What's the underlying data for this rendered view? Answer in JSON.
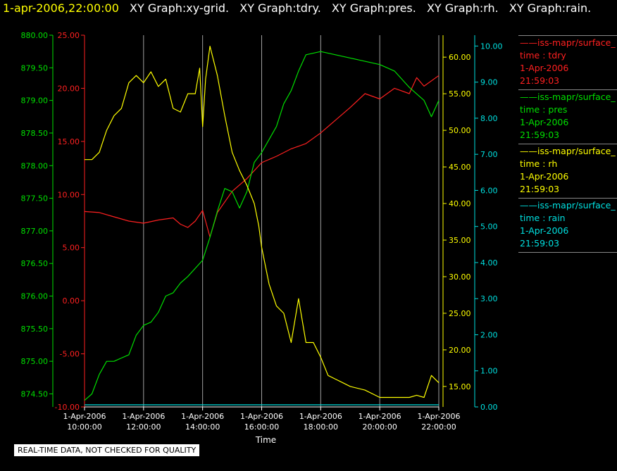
{
  "header": {
    "timestamp": "1-apr-2006,22:00:00",
    "titles": [
      "XY Graph:xy-grid.",
      "XY Graph:tdry.",
      "XY Graph:pres.",
      "XY Graph:rh.",
      "XY Graph:rain."
    ]
  },
  "legend": [
    {
      "source": "iss-mapr/surface_",
      "field": "time : tdry",
      "date": "1-Apr-2006",
      "time": "21:59:03",
      "color": "#ff2020"
    },
    {
      "source": "iss-mapr/surface_",
      "field": "time : pres",
      "date": "1-Apr-2006",
      "time": "21:59:03",
      "color": "#00e000"
    },
    {
      "source": "iss-mapr/surface_",
      "field": "time : rh",
      "date": "1-Apr-2006",
      "time": "21:59:03",
      "color": "#ffff00"
    },
    {
      "source": "iss-mapr/surface_",
      "field": "time : rain",
      "date": "1-Apr-2006",
      "time": "21:59:03",
      "color": "#00e0e0"
    }
  ],
  "note": "REAL-TIME DATA, NOT CHECKED FOR QUALITY",
  "chart_data": {
    "type": "line",
    "xlabel": "Time",
    "x_ticks": [
      {
        "hour": 10,
        "date": "1-Apr-2006",
        "time": "10:00:00"
      },
      {
        "hour": 12,
        "date": "1-Apr-2006",
        "time": "12:00:00"
      },
      {
        "hour": 14,
        "date": "1-Apr-2006",
        "time": "14:00:00"
      },
      {
        "hour": 16,
        "date": "1-Apr-2006",
        "time": "16:00:00"
      },
      {
        "hour": 18,
        "date": "1-Apr-2006",
        "time": "18:00:00"
      },
      {
        "hour": 20,
        "date": "1-Apr-2006",
        "time": "20:00:00"
      },
      {
        "hour": 22,
        "date": "1-Apr-2006",
        "time": "22:00:00"
      }
    ],
    "xlim": [
      10,
      22
    ],
    "grid": "vertical",
    "axes": [
      {
        "id": "pres",
        "color": "#00e000",
        "ylim": [
          874.3,
          880.0
        ],
        "ticks": [
          "874.50",
          "875.00",
          "875.50",
          "876.00",
          "876.50",
          "877.00",
          "877.50",
          "878.00",
          "878.50",
          "879.00",
          "879.50",
          "880.00"
        ]
      },
      {
        "id": "tdry",
        "color": "#ff2020",
        "ylim": [
          -10,
          25
        ],
        "ticks": [
          "-10.00",
          "-5.00",
          "0.00",
          "5.00",
          "10.00",
          "15.00",
          "20.00",
          "25.00"
        ]
      },
      {
        "id": "rh",
        "color": "#ffff00",
        "ylim": [
          12.2,
          63.0
        ],
        "ticks": [
          "15.00",
          "20.00",
          "25.00",
          "30.00",
          "35.00",
          "40.00",
          "45.00",
          "50.00",
          "55.00",
          "60.00"
        ]
      },
      {
        "id": "rain",
        "color": "#00e0e0",
        "ylim": [
          0,
          10.3
        ],
        "ticks": [
          "0.00",
          "1.00",
          "2.00",
          "3.00",
          "4.00",
          "5.00",
          "6.00",
          "7.00",
          "8.00",
          "9.00",
          "10.00"
        ]
      }
    ],
    "series": [
      {
        "axis": "tdry",
        "color": "#ff2020",
        "points": [
          [
            10.0,
            8.4
          ],
          [
            10.5,
            8.3
          ],
          [
            11.0,
            7.9
          ],
          [
            11.5,
            7.5
          ],
          [
            12.0,
            7.3
          ],
          [
            12.5,
            7.6
          ],
          [
            13.0,
            7.8
          ],
          [
            13.25,
            7.2
          ],
          [
            13.5,
            6.9
          ],
          [
            13.75,
            7.5
          ],
          [
            14.0,
            8.5
          ],
          [
            14.25,
            6.0
          ],
          [
            14.5,
            8.3
          ],
          [
            15.0,
            10.3
          ],
          [
            15.5,
            11.5
          ],
          [
            16.0,
            13.0
          ],
          [
            16.5,
            13.6
          ],
          [
            17.0,
            14.3
          ],
          [
            17.5,
            14.8
          ],
          [
            18.0,
            15.8
          ],
          [
            18.5,
            17.0
          ],
          [
            19.0,
            18.2
          ],
          [
            19.5,
            19.5
          ],
          [
            20.0,
            19.0
          ],
          [
            20.5,
            20.0
          ],
          [
            21.0,
            19.5
          ],
          [
            21.25,
            21.0
          ],
          [
            21.5,
            20.2
          ],
          [
            22.0,
            21.2
          ]
        ]
      },
      {
        "axis": "pres",
        "color": "#00e000",
        "points": [
          [
            10.0,
            874.4
          ],
          [
            10.25,
            874.5
          ],
          [
            10.5,
            874.8
          ],
          [
            10.75,
            875.0
          ],
          [
            11.0,
            875.0
          ],
          [
            11.25,
            875.05
          ],
          [
            11.5,
            875.1
          ],
          [
            11.75,
            875.4
          ],
          [
            12.0,
            875.55
          ],
          [
            12.25,
            875.6
          ],
          [
            12.5,
            875.75
          ],
          [
            12.75,
            876.0
          ],
          [
            13.0,
            876.05
          ],
          [
            13.25,
            876.2
          ],
          [
            13.5,
            876.3
          ],
          [
            14.0,
            876.55
          ],
          [
            14.25,
            876.9
          ],
          [
            14.5,
            877.3
          ],
          [
            14.75,
            877.65
          ],
          [
            15.0,
            877.6
          ],
          [
            15.25,
            877.35
          ],
          [
            15.5,
            877.6
          ],
          [
            15.75,
            878.05
          ],
          [
            16.0,
            878.2
          ],
          [
            16.25,
            878.4
          ],
          [
            16.5,
            878.6
          ],
          [
            16.75,
            878.95
          ],
          [
            17.0,
            879.15
          ],
          [
            17.25,
            879.45
          ],
          [
            17.5,
            879.7
          ],
          [
            18.0,
            879.75
          ],
          [
            18.5,
            879.7
          ],
          [
            19.0,
            879.65
          ],
          [
            19.5,
            879.6
          ],
          [
            20.0,
            879.55
          ],
          [
            20.5,
            879.45
          ],
          [
            21.0,
            879.2
          ],
          [
            21.5,
            879.0
          ],
          [
            21.75,
            878.75
          ],
          [
            22.0,
            879.0
          ]
        ]
      },
      {
        "axis": "rh",
        "color": "#ffff00",
        "points": [
          [
            10.0,
            46.0
          ],
          [
            10.25,
            46.0
          ],
          [
            10.5,
            47.0
          ],
          [
            10.75,
            50.0
          ],
          [
            11.0,
            52.0
          ],
          [
            11.25,
            53.0
          ],
          [
            11.5,
            56.5
          ],
          [
            11.75,
            57.5
          ],
          [
            12.0,
            56.5
          ],
          [
            12.25,
            58.0
          ],
          [
            12.5,
            56.0
          ],
          [
            12.75,
            57.0
          ],
          [
            13.0,
            53.0
          ],
          [
            13.25,
            52.5
          ],
          [
            13.5,
            55.0
          ],
          [
            13.75,
            55.0
          ],
          [
            13.9,
            58.5
          ],
          [
            14.0,
            50.5
          ],
          [
            14.1,
            57.0
          ],
          [
            14.25,
            61.5
          ],
          [
            14.5,
            57.5
          ],
          [
            14.75,
            52.0
          ],
          [
            15.0,
            47.0
          ],
          [
            15.25,
            44.5
          ],
          [
            15.5,
            42.5
          ],
          [
            15.75,
            40.0
          ],
          [
            15.9,
            37.0
          ],
          [
            16.0,
            34.0
          ],
          [
            16.25,
            29.0
          ],
          [
            16.5,
            26.0
          ],
          [
            16.75,
            25.0
          ],
          [
            17.0,
            21.0
          ],
          [
            17.25,
            27.0
          ],
          [
            17.5,
            21.0
          ],
          [
            17.75,
            21.0
          ],
          [
            18.0,
            19.0
          ],
          [
            18.25,
            16.5
          ],
          [
            18.5,
            16.0
          ],
          [
            18.75,
            15.5
          ],
          [
            19.0,
            15.0
          ],
          [
            19.5,
            14.5
          ],
          [
            20.0,
            13.5
          ],
          [
            20.5,
            13.5
          ],
          [
            21.0,
            13.5
          ],
          [
            21.25,
            13.8
          ],
          [
            21.5,
            13.5
          ],
          [
            21.75,
            16.5
          ],
          [
            22.0,
            15.5
          ]
        ]
      },
      {
        "axis": "rain",
        "color": "#00e0e0",
        "points": [
          [
            10.0,
            0.0
          ],
          [
            22.0,
            0.0
          ]
        ]
      }
    ]
  }
}
